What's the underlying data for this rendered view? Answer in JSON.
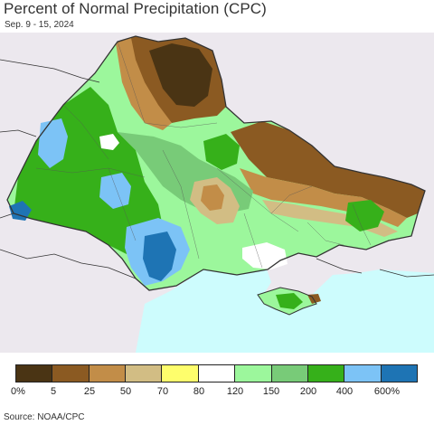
{
  "header": {
    "title": "Percent of Normal Precipitation (CPC)",
    "date_range": "Sep. 9 - 15, 2024"
  },
  "legend": {
    "colors": [
      "#4a3414",
      "#8b5a22",
      "#c28d48",
      "#d2bd84",
      "#fefe6c",
      "#ffffff",
      "#9cf79c",
      "#78cb78",
      "#36b01a",
      "#7cc3f6",
      "#1e74b4"
    ],
    "labels": [
      "0%",
      "5",
      "25",
      "50",
      "70",
      "80",
      "120",
      "150",
      "200",
      "400",
      "600%"
    ]
  },
  "footer": {
    "source": "Source: NOAA/CPC"
  }
}
